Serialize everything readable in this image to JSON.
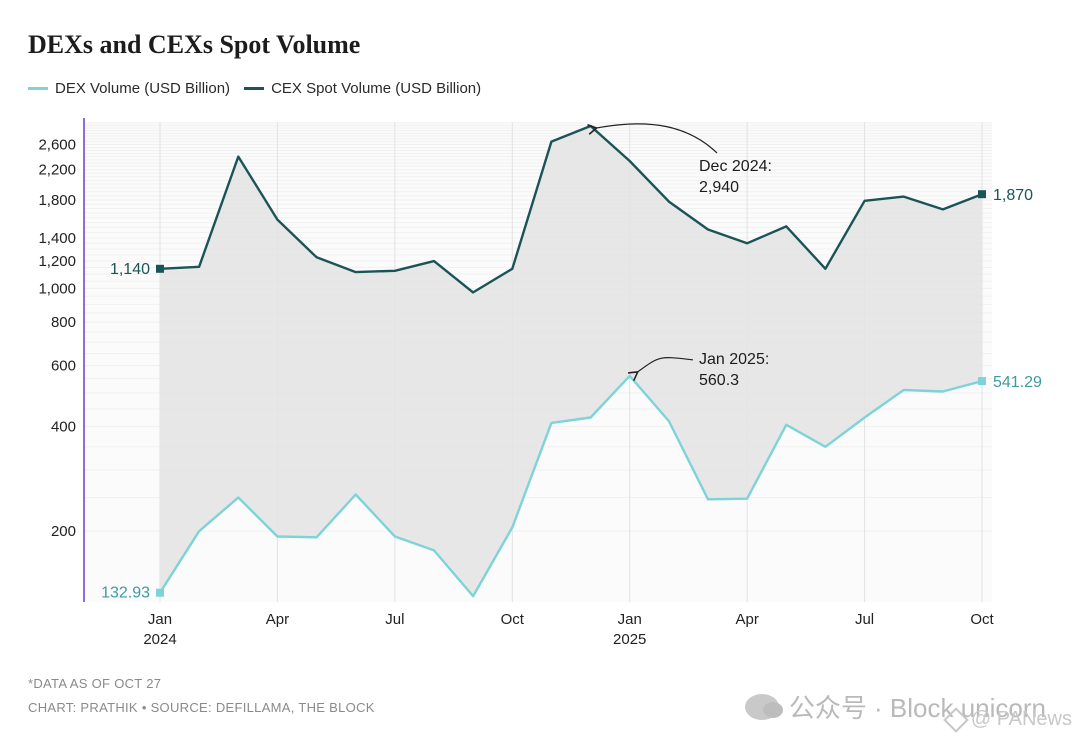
{
  "chart_data": {
    "type": "line",
    "title": "DEXs and CEXs Spot Volume",
    "yscale": "log",
    "ylim": [
      125,
      3100
    ],
    "y_ticks": [
      200,
      400,
      600,
      800,
      1000,
      1200,
      1400,
      1800,
      2200,
      2600
    ],
    "y_tick_labels": [
      "200",
      "400",
      "600",
      "800",
      "1,000",
      "1,200",
      "1,400",
      "1,800",
      "2,200",
      "2,600"
    ],
    "x": [
      "2024-01",
      "2024-02",
      "2024-03",
      "2024-04",
      "2024-05",
      "2024-06",
      "2024-07",
      "2024-08",
      "2024-09",
      "2024-10",
      "2024-11",
      "2024-12",
      "2025-01",
      "2025-02",
      "2025-03",
      "2025-04",
      "2025-05",
      "2025-06",
      "2025-07",
      "2025-08",
      "2025-09",
      "2025-10"
    ],
    "x_ticks": [
      {
        "month": "2024-01",
        "label": "Jan",
        "year": "2024"
      },
      {
        "month": "2024-04",
        "label": "Apr",
        "year": ""
      },
      {
        "month": "2024-07",
        "label": "Jul",
        "year": ""
      },
      {
        "month": "2024-10",
        "label": "Oct",
        "year": ""
      },
      {
        "month": "2025-01",
        "label": "Jan",
        "year": "2025"
      },
      {
        "month": "2025-04",
        "label": "Apr",
        "year": ""
      },
      {
        "month": "2025-07",
        "label": "Jul",
        "year": ""
      },
      {
        "month": "2025-10",
        "label": "Oct",
        "year": ""
      }
    ],
    "grid": true,
    "series": [
      {
        "name": "DEX Volume (USD Billion)",
        "color": "#7ed3d9",
        "values": [
          132.93,
          200,
          250,
          193,
          192,
          255,
          193,
          176,
          130,
          205,
          410,
          425,
          560.3,
          415,
          247,
          248,
          405,
          350,
          425,
          510,
          505,
          541.29
        ]
      },
      {
        "name": "CEX Spot Volume (USD Billion)",
        "color": "#1b5456",
        "values": [
          1140,
          1155,
          2400,
          1580,
          1230,
          1115,
          1125,
          1200,
          975,
          1140,
          2650,
          2940,
          2330,
          1780,
          1480,
          1350,
          1510,
          1140,
          1790,
          1840,
          1690,
          1870
        ]
      }
    ],
    "start_labels": {
      "dex": "132.93",
      "cex": "1,140"
    },
    "end_labels": {
      "dex": "541.29",
      "cex": "1,870"
    },
    "annotations": [
      {
        "line1": "Dec 2024:",
        "line2": "2,940",
        "month": "2024-12",
        "series": "cex"
      },
      {
        "line1": "Jan 2025:",
        "line2": "560.3",
        "month": "2025-01",
        "series": "dex"
      }
    ],
    "footnotes": [
      "*DATA AS OF OCT 27",
      "CHART: PRATHIK • SOURCE: DEFILLAMA, THE BLOCK"
    ],
    "colors": {
      "fill": "#e4e4e4",
      "axis_accent": "#8e6fd0",
      "grid": "#f1f1f1",
      "text": "#222222"
    }
  },
  "watermarks": {
    "wechat": "公众号 · Block unicorn",
    "panews": "@ PANews"
  }
}
